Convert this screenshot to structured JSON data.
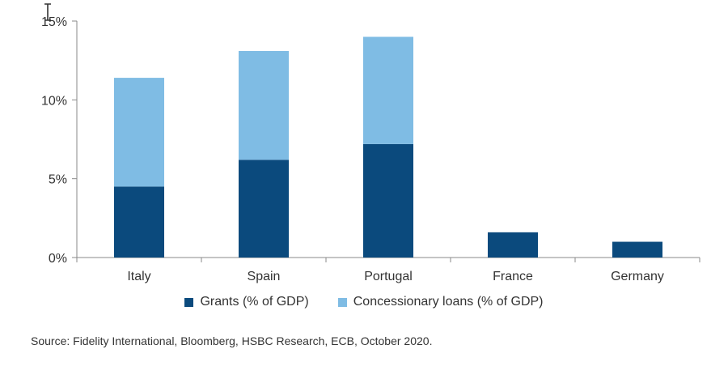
{
  "chart_data": {
    "type": "bar",
    "stacked": true,
    "categories": [
      "Italy",
      "Spain",
      "Portugal",
      "France",
      "Germany"
    ],
    "series": [
      {
        "name": "Grants (% of GDP)",
        "values": [
          4.5,
          6.2,
          7.2,
          1.6,
          1.0
        ],
        "color": "#0b4a7d"
      },
      {
        "name": "Concessionary loans (% of GDP)",
        "values": [
          6.9,
          6.9,
          6.8,
          0,
          0
        ],
        "color": "#7fbce4"
      }
    ],
    "yticks": [
      "0%",
      "5%",
      "10%",
      "15%"
    ],
    "ytick_values": [
      0,
      5,
      10,
      15
    ],
    "ylim": [
      0,
      15
    ],
    "grid": false,
    "legend_position": "bottom"
  },
  "source": "Source: Fidelity International, Bloomberg, HSBC Research, ECB, October 2020.",
  "icons": {
    "cursor": "text-cursor-icon"
  }
}
